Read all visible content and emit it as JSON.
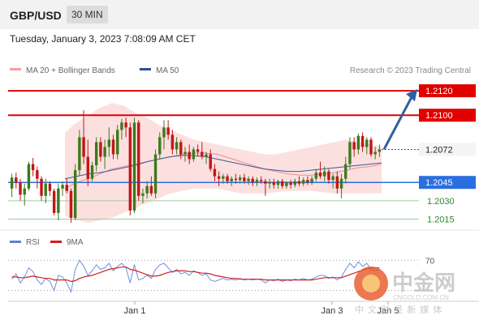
{
  "header": {
    "pair": "GBP/USD",
    "timeframe": "30 MIN"
  },
  "datetime": "Tuesday, January 3, 2023 7:08:09 AM CET",
  "legend": [
    {
      "label": "MA 20 + Bollinger Bands",
      "color": "#f4a0a0"
    },
    {
      "label": "MA 50",
      "color": "#2f4f8f"
    }
  ],
  "copyright": "Research © 2023 Trading Central",
  "levels": [
    {
      "value": 1.212,
      "label": "1.2120",
      "style": "red-box",
      "color": "#e00000"
    },
    {
      "value": 1.21,
      "label": "1.2100",
      "style": "red-box",
      "color": "#e00000"
    },
    {
      "value": 1.2072,
      "label": "1.2072",
      "style": "dark-box",
      "color": "#222222"
    },
    {
      "value": 1.2045,
      "label": "1.2045",
      "style": "blue-box",
      "color": "#2a6ee0"
    },
    {
      "value": 1.203,
      "label": "1.2030",
      "style": "green-text",
      "color": "#2a8a2a"
    },
    {
      "value": 1.2015,
      "label": "1.2015",
      "style": "green-text",
      "color": "#2a8a2a"
    }
  ],
  "chart_data": {
    "type": "candlestick",
    "ylim": [
      1.201,
      1.2128
    ],
    "x_ticks": [
      "Jan 1",
      "Jan 3",
      "Jan 5"
    ],
    "current_price": 1.2072,
    "target": 1.212,
    "ohlc": [
      [
        1.204,
        1.2052,
        1.2033,
        1.2049
      ],
      [
        1.2049,
        1.2053,
        1.204,
        1.2045
      ],
      [
        1.2045,
        1.2048,
        1.203,
        1.2035
      ],
      [
        1.2035,
        1.2044,
        1.2026,
        1.204
      ],
      [
        1.204,
        1.2062,
        1.2038,
        1.206
      ],
      [
        1.206,
        1.2065,
        1.205,
        1.2055
      ],
      [
        1.2055,
        1.2058,
        1.204,
        1.2048
      ],
      [
        1.2048,
        1.205,
        1.203,
        1.2034
      ],
      [
        1.2034,
        1.2048,
        1.2028,
        1.2044
      ],
      [
        1.2044,
        1.2046,
        1.2034,
        1.2038
      ],
      [
        1.2038,
        1.204,
        1.2018,
        1.202
      ],
      [
        1.202,
        1.2044,
        1.2014,
        1.204
      ],
      [
        1.204,
        1.2046,
        1.2034,
        1.2043
      ],
      [
        1.2043,
        1.2048,
        1.2036,
        1.2038
      ],
      [
        1.2038,
        1.204,
        1.2012,
        1.2016
      ],
      [
        1.2016,
        1.206,
        1.2014,
        1.2055
      ],
      [
        1.2055,
        1.2088,
        1.205,
        1.2082
      ],
      [
        1.2082,
        1.2104,
        1.206,
        1.2066
      ],
      [
        1.2066,
        1.208,
        1.2042,
        1.2048
      ],
      [
        1.2048,
        1.2062,
        1.2046,
        1.2059
      ],
      [
        1.2059,
        1.2082,
        1.2054,
        1.2078
      ],
      [
        1.2078,
        1.2082,
        1.2062,
        1.2066
      ],
      [
        1.2066,
        1.208,
        1.2056,
        1.2074
      ],
      [
        1.2074,
        1.209,
        1.2066,
        1.208
      ],
      [
        1.208,
        1.2084,
        1.2064,
        1.2068
      ],
      [
        1.2068,
        1.2092,
        1.2064,
        1.2088
      ],
      [
        1.2088,
        1.2097,
        1.208,
        1.2094
      ],
      [
        1.2094,
        1.2098,
        1.2082,
        1.209
      ],
      [
        1.209,
        1.2094,
        1.2018,
        1.2022
      ],
      [
        1.2022,
        1.2098,
        1.202,
        1.2094
      ],
      [
        1.2094,
        1.2096,
        1.203,
        1.2034
      ],
      [
        1.2034,
        1.204,
        1.2028,
        1.2036
      ],
      [
        1.2036,
        1.2046,
        1.2032,
        1.2042
      ],
      [
        1.2042,
        1.205,
        1.2034,
        1.2036
      ],
      [
        1.2036,
        1.2072,
        1.2032,
        1.2068
      ],
      [
        1.2068,
        1.2086,
        1.2064,
        1.2082
      ],
      [
        1.2082,
        1.2096,
        1.2072,
        1.209
      ],
      [
        1.209,
        1.2096,
        1.208,
        1.2084
      ],
      [
        1.2084,
        1.2088,
        1.2068,
        1.2072
      ],
      [
        1.2072,
        1.2082,
        1.2068,
        1.2078
      ],
      [
        1.2078,
        1.208,
        1.2064,
        1.2068
      ],
      [
        1.2068,
        1.2074,
        1.2062,
        1.207
      ],
      [
        1.207,
        1.2076,
        1.206,
        1.2064
      ],
      [
        1.2064,
        1.2074,
        1.2062,
        1.2072
      ],
      [
        1.2072,
        1.2076,
        1.2066,
        1.207
      ],
      [
        1.207,
        1.2078,
        1.2064,
        1.2066
      ],
      [
        1.2066,
        1.207,
        1.206,
        1.2068
      ],
      [
        1.2068,
        1.2072,
        1.2054,
        1.2056
      ],
      [
        1.2056,
        1.206,
        1.2046,
        1.205
      ],
      [
        1.205,
        1.2054,
        1.2042,
        1.2048
      ],
      [
        1.2048,
        1.2052,
        1.2044,
        1.205
      ],
      [
        1.205,
        1.2052,
        1.2044,
        1.2046
      ],
      [
        1.2046,
        1.205,
        1.2042,
        1.2048
      ],
      [
        1.2048,
        1.2052,
        1.2044,
        1.2047
      ],
      [
        1.2047,
        1.2051,
        1.2044,
        1.2049
      ],
      [
        1.2049,
        1.2052,
        1.2044,
        1.2046
      ],
      [
        1.2046,
        1.205,
        1.2043,
        1.2048
      ],
      [
        1.2048,
        1.205,
        1.2042,
        1.2045
      ],
      [
        1.2045,
        1.2049,
        1.2042,
        1.2047
      ],
      [
        1.2047,
        1.205,
        1.2044,
        1.2046
      ],
      [
        1.2046,
        1.2048,
        1.2034,
        1.2044
      ],
      [
        1.2044,
        1.2048,
        1.204,
        1.2045
      ],
      [
        1.2045,
        1.2048,
        1.204,
        1.2043
      ],
      [
        1.2043,
        1.2047,
        1.204,
        1.2046
      ],
      [
        1.2046,
        1.2048,
        1.204,
        1.2042
      ],
      [
        1.2042,
        1.2046,
        1.204,
        1.2045
      ],
      [
        1.2045,
        1.2047,
        1.204,
        1.2043
      ],
      [
        1.2043,
        1.2048,
        1.2041,
        1.2046
      ],
      [
        1.2046,
        1.205,
        1.2042,
        1.2044
      ],
      [
        1.2044,
        1.2049,
        1.2042,
        1.2047
      ],
      [
        1.2047,
        1.205,
        1.2043,
        1.2045
      ],
      [
        1.2045,
        1.205,
        1.2043,
        1.2048
      ],
      [
        1.2048,
        1.2056,
        1.2046,
        1.2053
      ],
      [
        1.2053,
        1.2062,
        1.2048,
        1.205
      ],
      [
        1.205,
        1.2058,
        1.2046,
        1.2054
      ],
      [
        1.2054,
        1.2056,
        1.2044,
        1.2047
      ],
      [
        1.2047,
        1.2052,
        1.204,
        1.205
      ],
      [
        1.205,
        1.2054,
        1.2036,
        1.204
      ],
      [
        1.204,
        1.2052,
        1.2032,
        1.2048
      ],
      [
        1.2048,
        1.2066,
        1.2044,
        1.206
      ],
      [
        1.206,
        1.2082,
        1.2056,
        1.2078
      ],
      [
        1.2078,
        1.2082,
        1.2066,
        1.2072
      ],
      [
        1.2072,
        1.2085,
        1.2068,
        1.2083
      ],
      [
        1.2083,
        1.2086,
        1.207,
        1.2074
      ],
      [
        1.2074,
        1.2082,
        1.2068,
        1.208
      ],
      [
        1.208,
        1.2082,
        1.2066,
        1.2068
      ],
      [
        1.2068,
        1.2074,
        1.2064,
        1.207
      ],
      [
        1.207,
        1.2076,
        1.2066,
        1.2072
      ]
    ],
    "ma20": [
      1.204,
      1.2045,
      1.2048,
      1.2052,
      1.2056,
      1.2058,
      1.206,
      1.2062,
      1.2064,
      1.2066,
      1.2068,
      1.2069,
      1.2069,
      1.2068,
      1.2065,
      1.2062,
      1.2059,
      1.2056,
      1.2054,
      1.2052,
      1.2051,
      1.2051,
      1.2052,
      1.2053,
      1.2055,
      1.2057,
      1.2058,
      1.206
    ],
    "ma50": [
      1.2048,
      1.205,
      1.2052,
      1.2053,
      1.2055,
      1.2057,
      1.2059,
      1.2062,
      1.2064,
      1.2066,
      1.2067,
      1.2067,
      1.2066,
      1.2064,
      1.2062,
      1.206,
      1.2058,
      1.2056,
      1.2055,
      1.2054,
      1.2054,
      1.2055,
      1.2056,
      1.2057,
      1.2058,
      1.2059,
      1.206,
      1.2061
    ],
    "bb_upper": [
      1.2086,
      1.2094,
      1.21,
      1.2106,
      1.211,
      1.2108,
      1.2102,
      1.2098,
      1.2092,
      1.2088,
      1.2084,
      1.208,
      1.2078,
      1.2076,
      1.2074,
      1.2072,
      1.207,
      1.2068,
      1.2068,
      1.207,
      1.2072,
      1.2074,
      1.2076,
      1.2078,
      1.208,
      1.2078,
      1.2076,
      1.2074
    ],
    "bb_lower": [
      1.2018,
      1.2014,
      1.2012,
      1.2014,
      1.2016,
      1.202,
      1.2024,
      1.2028,
      1.2032,
      1.2036,
      1.2038,
      1.204,
      1.204,
      1.204,
      1.2038,
      1.2036,
      1.2036,
      1.2036,
      1.2037,
      1.2038,
      1.2038,
      1.2038,
      1.2037,
      1.2036,
      1.2036,
      1.2036,
      1.2036,
      1.2036
    ],
    "rsi_panel": {
      "legend": [
        {
          "label": "RSI",
          "color": "#5b7fd6"
        },
        {
          "label": "9MA",
          "color": "#d02020"
        }
      ],
      "levels": [
        70,
        30
      ],
      "level_label": "70",
      "ylim": [
        20,
        80
      ],
      "rsi": [
        45,
        52,
        40,
        48,
        60,
        55,
        44,
        38,
        46,
        42,
        30,
        50,
        48,
        40,
        28,
        58,
        70,
        62,
        50,
        56,
        64,
        58,
        60,
        66,
        56,
        62,
        66,
        60,
        40,
        64,
        44,
        46,
        50,
        46,
        58,
        64,
        66,
        60,
        54,
        58,
        52,
        54,
        50,
        56,
        54,
        50,
        52,
        44,
        42,
        44,
        46,
        44,
        45,
        44,
        46,
        44,
        45,
        44,
        45,
        44,
        40,
        44,
        43,
        45,
        42,
        44,
        43,
        45,
        44,
        46,
        44,
        45,
        48,
        50,
        50,
        46,
        48,
        44,
        48,
        58,
        66,
        60,
        68,
        62,
        66,
        58,
        56,
        58
      ],
      "ma9": [
        48,
        48,
        47,
        47,
        48,
        49,
        48,
        47,
        46,
        46,
        44,
        44,
        44,
        44,
        42,
        43,
        46,
        48,
        49,
        50,
        52,
        54,
        56,
        58,
        59,
        60,
        61,
        61,
        58,
        57,
        55,
        53,
        51,
        49,
        49,
        50,
        52,
        54,
        55,
        56,
        56,
        56,
        55,
        55,
        54,
        53,
        53,
        52,
        50,
        49,
        48,
        47,
        46,
        46,
        45,
        45,
        45,
        45,
        45,
        45,
        44,
        44,
        44,
        44,
        44,
        44,
        44,
        44,
        44,
        44,
        44,
        44,
        45,
        46,
        47,
        47,
        47,
        47,
        47,
        49,
        51,
        53,
        55,
        57,
        59,
        60,
        60,
        60
      ]
    }
  },
  "watermark": {
    "brand": "中金网",
    "site": "CNGOLD.COM.CN",
    "slogan": "中 文 财 经 新 媒 体"
  }
}
